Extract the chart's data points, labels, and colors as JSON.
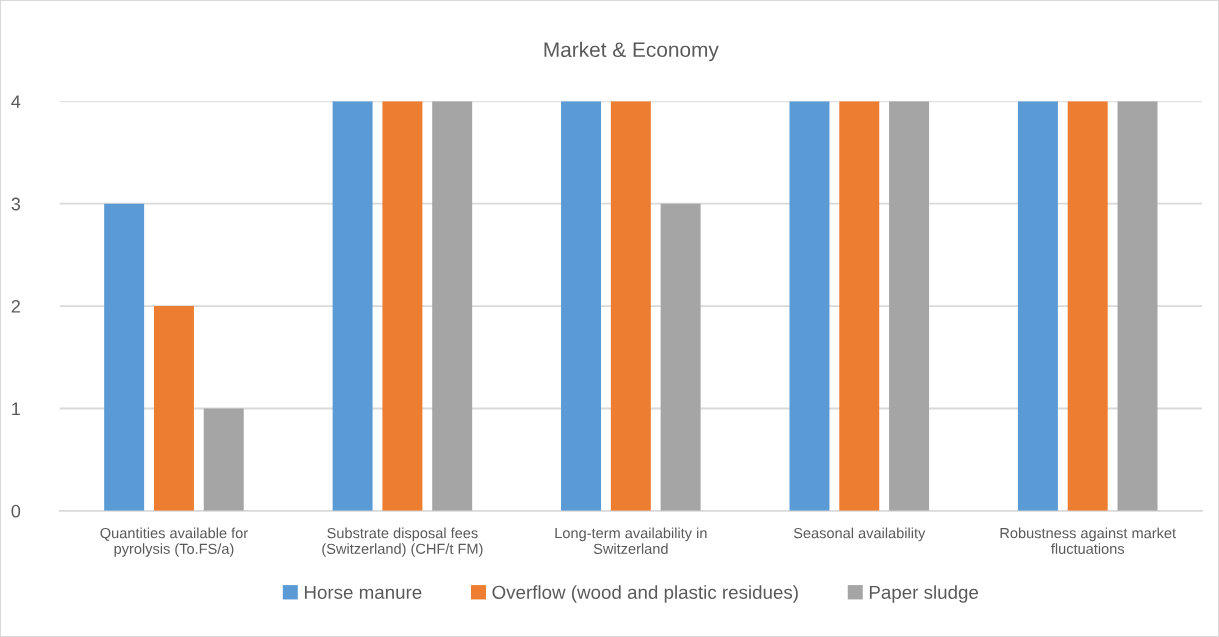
{
  "chart_data": {
    "type": "bar",
    "title": "Market & Economy",
    "categories": [
      "Quantities available for\npyrolysis (To.FS/a)",
      "Substrate disposal fees\n(Switzerland) (CHF/t FM)",
      "Long-term availability in\nSwitzerland",
      "Seasonal availability",
      "Robustness against market\nfluctuations"
    ],
    "series": [
      {
        "name": "Horse manure",
        "color": "#5b9bd5",
        "values": [
          3,
          4,
          4,
          4,
          4
        ]
      },
      {
        "name": "Overflow (wood and plastic residues)",
        "color": "#ed7d31",
        "values": [
          2,
          4,
          4,
          4,
          4
        ]
      },
      {
        "name": "Paper sludge",
        "color": "#a5a5a5",
        "values": [
          1,
          4,
          3,
          4,
          4
        ]
      }
    ],
    "ylim": [
      0,
      4
    ],
    "yticks": [
      0,
      1,
      2,
      3,
      4
    ],
    "grid": "y",
    "legend": "bottom"
  }
}
